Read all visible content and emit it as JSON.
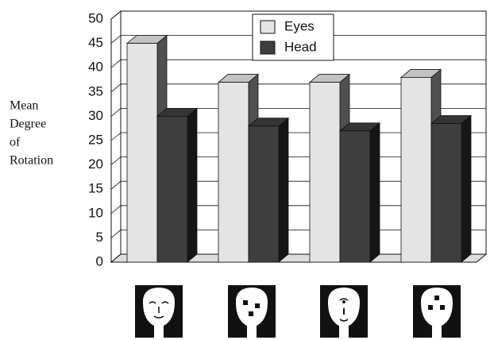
{
  "chart_data": {
    "type": "bar3d",
    "ylabel": [
      "Mean",
      "Degree",
      "of",
      "Rotation"
    ],
    "categories": [
      null,
      null,
      null,
      null
    ],
    "series": [
      {
        "name": "Eyes",
        "color": "#e4e4e4",
        "values": [
          45,
          37,
          37,
          38
        ]
      },
      {
        "name": "Head",
        "color": "#3e3e3e",
        "values": [
          30,
          28,
          27,
          28.5
        ]
      }
    ],
    "ylim": [
      0,
      50
    ],
    "yticks": [
      0,
      5,
      10,
      15,
      20,
      25,
      30,
      35,
      40,
      45,
      50
    ],
    "grid": true,
    "legend_position": "top-center"
  }
}
